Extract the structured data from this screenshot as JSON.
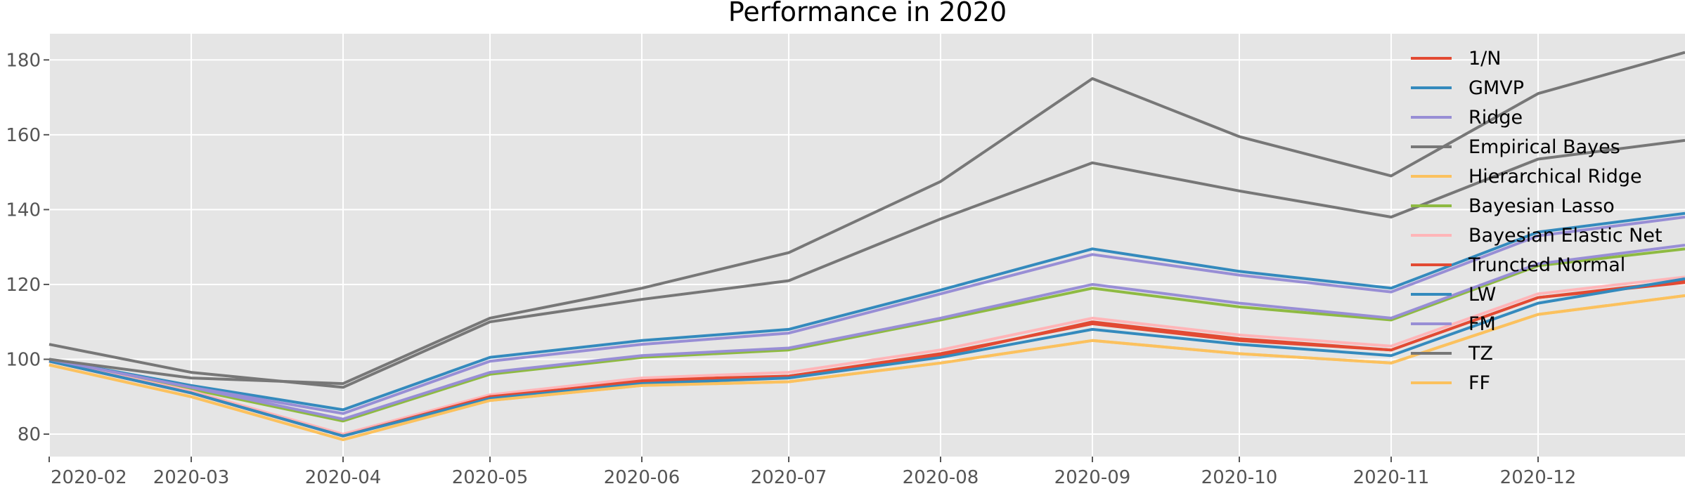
{
  "chart_data": {
    "type": "line",
    "title": "Performance in 2020",
    "xlabel": "",
    "ylabel": "",
    "x_ticks": [
      "2020-02",
      "2020-03",
      "2020-04",
      "2020-05",
      "2020-06",
      "2020-07",
      "2020-08",
      "2020-09",
      "2020-10",
      "2020-11",
      "2020-12"
    ],
    "y_ticks": [
      80,
      100,
      120,
      140,
      160,
      180
    ],
    "ylim": [
      74,
      187
    ],
    "xlim": [
      "2020-02-01",
      "2020-12-31"
    ],
    "grid": true,
    "legend_position": "upper right",
    "x": [
      "2020-02-01",
      "2020-03-01",
      "2020-04-01",
      "2020-05-01",
      "2020-06-01",
      "2020-07-01",
      "2020-08-01",
      "2020-09-01",
      "2020-10-01",
      "2020-11-01",
      "2020-12-01",
      "2020-12-31"
    ],
    "series": [
      {
        "name": "1/N",
        "color": "#E24A33",
        "values": [
          99.5,
          91.0,
          79.5,
          90.0,
          94.5,
          95.5,
          101.0,
          110.0,
          105.5,
          102.5,
          116.5,
          121.0
        ]
      },
      {
        "name": "GMVP",
        "color": "#348ABD",
        "values": [
          100.0,
          93.0,
          86.5,
          100.5,
          105.0,
          108.0,
          118.5,
          129.5,
          123.5,
          119.0,
          134.0,
          139.0
        ]
      },
      {
        "name": "Ridge",
        "color": "#988ED5",
        "values": [
          100.0,
          92.5,
          85.5,
          99.5,
          104.0,
          107.0,
          117.5,
          128.0,
          122.5,
          118.0,
          133.0,
          138.0
        ]
      },
      {
        "name": "Empirical Bayes",
        "color": "#777777",
        "values": [
          104.0,
          96.5,
          92.5,
          110.0,
          116.0,
          121.0,
          137.5,
          152.5,
          145.0,
          138.0,
          153.5,
          158.5
        ]
      },
      {
        "name": "Hierarchical Ridge",
        "color": "#FBC15E",
        "values": [
          98.5,
          90.0,
          78.5,
          89.0,
          93.0,
          94.0,
          99.0,
          105.0,
          101.5,
          99.0,
          112.0,
          117.0
        ]
      },
      {
        "name": "Bayesian Lasso",
        "color": "#8EBA42",
        "values": [
          100.0,
          92.0,
          83.5,
          96.0,
          100.5,
          102.5,
          110.5,
          119.0,
          114.0,
          110.5,
          125.0,
          129.5
        ]
      },
      {
        "name": "Bayesian Elastic Net",
        "color": "#FFB5B8",
        "values": [
          99.5,
          91.5,
          80.0,
          90.5,
          95.0,
          96.5,
          102.5,
          111.0,
          106.5,
          103.5,
          117.5,
          122.0
        ]
      },
      {
        "name": "Truncted Normal",
        "color": "#E24A33",
        "values": [
          99.5,
          91.0,
          79.5,
          90.0,
          94.0,
          95.5,
          101.5,
          109.5,
          105.0,
          102.5,
          116.5,
          120.5
        ]
      },
      {
        "name": "LW",
        "color": "#348ABD",
        "values": [
          99.5,
          91.0,
          79.5,
          89.5,
          93.5,
          95.0,
          100.5,
          108.0,
          104.0,
          101.0,
          115.0,
          121.5
        ]
      },
      {
        "name": "FM",
        "color": "#988ED5",
        "values": [
          100.0,
          92.5,
          84.0,
          96.5,
          101.0,
          103.0,
          111.0,
          120.0,
          115.0,
          111.0,
          125.5,
          130.5
        ]
      },
      {
        "name": "TZ",
        "color": "#777777",
        "values": [
          100.0,
          95.0,
          93.5,
          111.0,
          119.0,
          128.5,
          147.5,
          175.0,
          159.5,
          149.0,
          171.0,
          182.0
        ]
      },
      {
        "name": "FF",
        "color": "#FBC15E",
        "values": [
          98.5,
          90.0,
          78.5,
          89.0,
          93.0,
          94.0,
          99.0,
          105.0,
          101.5,
          99.0,
          112.0,
          117.0
        ]
      }
    ]
  }
}
